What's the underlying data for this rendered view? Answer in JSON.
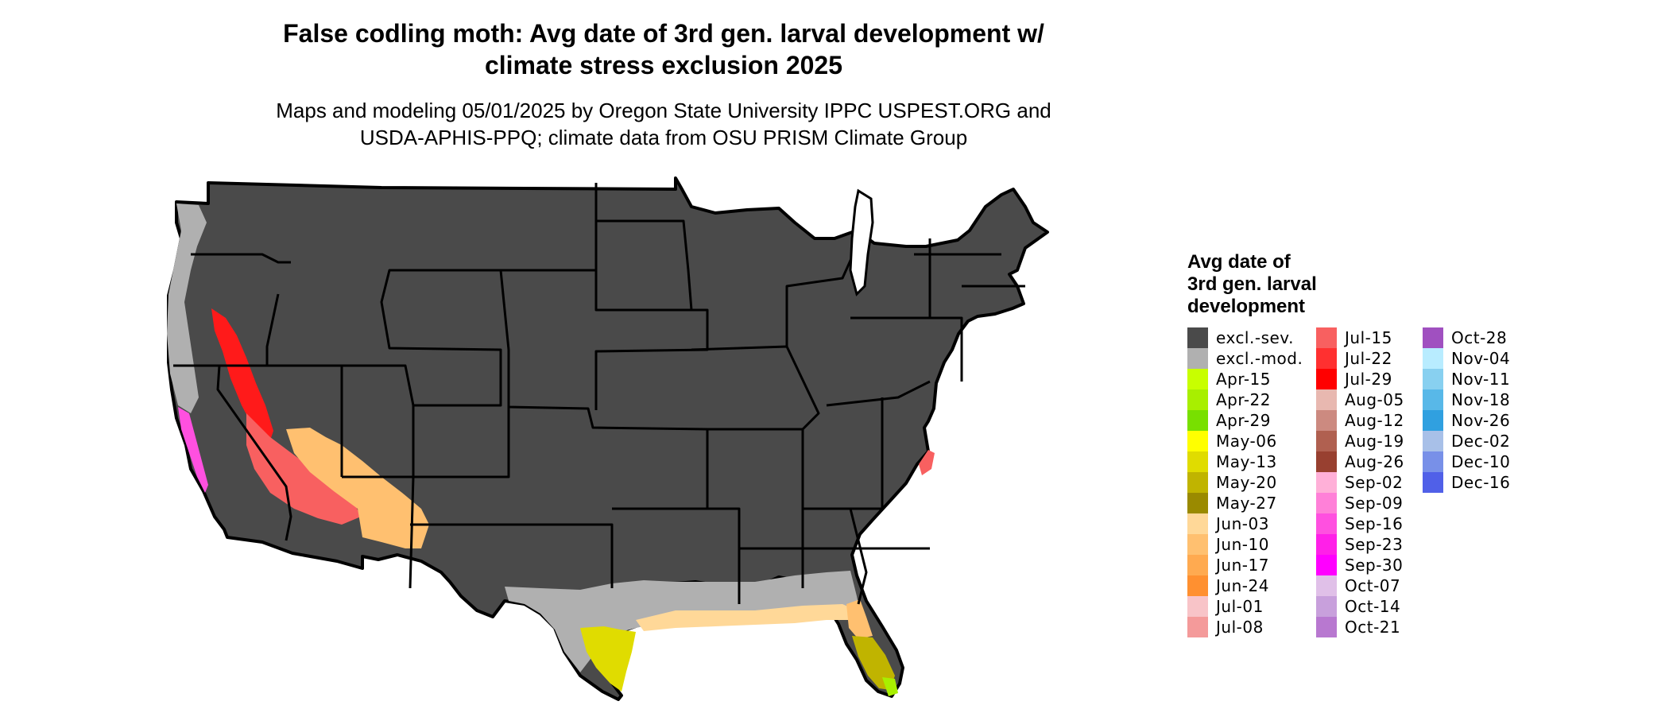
{
  "title_line1": "False codling moth: Avg date of 3rd gen. larval development w/",
  "title_line2": "climate stress exclusion 2025",
  "subtitle_line1": "Maps and modeling 05/01/2025 by Oregon State University IPPC USPEST.ORG and",
  "subtitle_line2": "USDA-APHIS-PPQ; climate data from OSU PRISM Climate Group",
  "map": {
    "region": "Contiguous United States",
    "land_color": "#4a4a4a",
    "border_color": "#000000"
  },
  "legend": {
    "title_lines": [
      "Avg date of",
      "3rd gen. larval",
      "development"
    ],
    "columns": [
      [
        {
          "label": "excl.-sev.",
          "color": "#4a4a4a"
        },
        {
          "label": "excl.-mod.",
          "color": "#b0b0b0"
        },
        {
          "label": "Apr-15",
          "color": "#c8ff00"
        },
        {
          "label": "Apr-22",
          "color": "#a8ef00"
        },
        {
          "label": "Apr-29",
          "color": "#78e000"
        },
        {
          "label": "May-06",
          "color": "#ffff00"
        },
        {
          "label": "May-13",
          "color": "#e0dc00"
        },
        {
          "label": "May-20",
          "color": "#c0b400"
        },
        {
          "label": "May-27",
          "color": "#9a8a00"
        },
        {
          "label": "Jun-03",
          "color": "#ffd898"
        },
        {
          "label": "Jun-10",
          "color": "#ffc070"
        },
        {
          "label": "Jun-17",
          "color": "#ffaa50"
        },
        {
          "label": "Jun-24",
          "color": "#ff9030"
        },
        {
          "label": "Jul-01",
          "color": "#f8c4c8"
        },
        {
          "label": "Jul-08",
          "color": "#f49a9a"
        }
      ],
      [
        {
          "label": "Jul-15",
          "color": "#f86060"
        },
        {
          "label": "Jul-22",
          "color": "#ff3030"
        },
        {
          "label": "Jul-29",
          "color": "#ff0000"
        },
        {
          "label": "Aug-05",
          "color": "#e8b8b0"
        },
        {
          "label": "Aug-12",
          "color": "#cc8a80"
        },
        {
          "label": "Aug-19",
          "color": "#b06050"
        },
        {
          "label": "Aug-26",
          "color": "#984030"
        },
        {
          "label": "Sep-02",
          "color": "#ffb0d8"
        },
        {
          "label": "Sep-09",
          "color": "#ff80d8"
        },
        {
          "label": "Sep-16",
          "color": "#ff50e0"
        },
        {
          "label": "Sep-23",
          "color": "#ff20e8"
        },
        {
          "label": "Sep-30",
          "color": "#ff00ff"
        },
        {
          "label": "Oct-07",
          "color": "#e0c0e8"
        },
        {
          "label": "Oct-14",
          "color": "#c8a0dc"
        },
        {
          "label": "Oct-21",
          "color": "#b878d0"
        }
      ],
      [
        {
          "label": "Oct-28",
          "color": "#a050c0"
        },
        {
          "label": "Nov-04",
          "color": "#b8ecff"
        },
        {
          "label": "Nov-11",
          "color": "#88d0f0"
        },
        {
          "label": "Nov-18",
          "color": "#58b8e8"
        },
        {
          "label": "Nov-26",
          "color": "#30a0e0"
        },
        {
          "label": "Dec-02",
          "color": "#a8c0e8"
        },
        {
          "label": "Dec-10",
          "color": "#7890e8"
        },
        {
          "label": "Dec-16",
          "color": "#5060e8"
        }
      ]
    ]
  }
}
